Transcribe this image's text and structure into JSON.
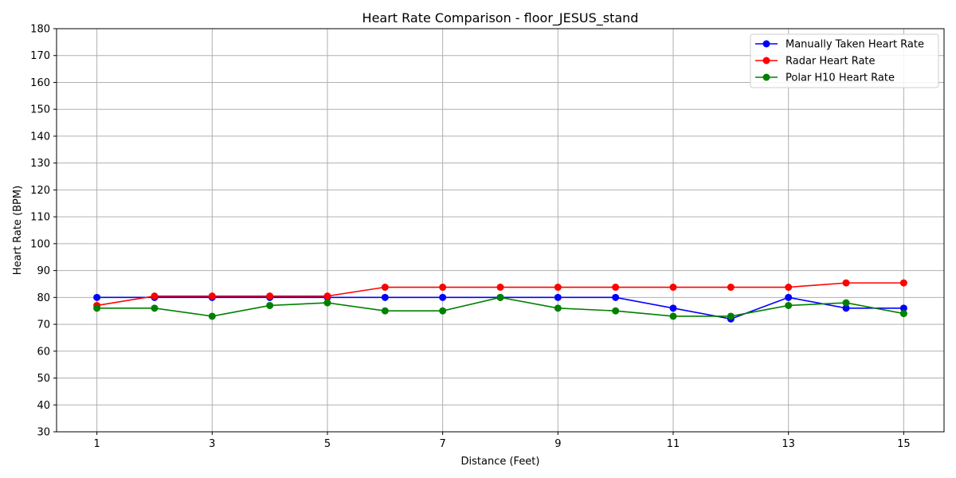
{
  "chart_data": {
    "type": "line",
    "title": "Heart Rate Comparison - floor_JESUS_stand",
    "xlabel": "Distance (Feet)",
    "ylabel": "Heart Rate (BPM)",
    "x": [
      1,
      2,
      3,
      4,
      5,
      6,
      7,
      8,
      9,
      10,
      11,
      12,
      13,
      14,
      15
    ],
    "xlim": [
      0.3,
      15.7
    ],
    "ylim": [
      30,
      180
    ],
    "x_ticks": [
      1,
      3,
      5,
      7,
      9,
      11,
      13,
      15
    ],
    "y_ticks": [
      30,
      40,
      50,
      60,
      70,
      80,
      90,
      100,
      110,
      120,
      130,
      140,
      150,
      160,
      170,
      180
    ],
    "grid": true,
    "legend_position": "top-right",
    "series": [
      {
        "name": "Manually Taken Heart Rate",
        "color": "#0000ff",
        "marker": "circle",
        "values": [
          80,
          80,
          80,
          80,
          80,
          80,
          80,
          80,
          80,
          80,
          76,
          72,
          80,
          76,
          76
        ]
      },
      {
        "name": "Radar Heart Rate",
        "color": "#ff0000",
        "marker": "circle",
        "values": [
          77,
          80.5,
          80.5,
          80.5,
          80.5,
          83.8,
          83.8,
          83.8,
          83.8,
          83.8,
          83.8,
          83.8,
          83.8,
          85.4,
          85.4
        ]
      },
      {
        "name": "Polar H10 Heart Rate",
        "color": "#008000",
        "marker": "circle",
        "values": [
          76,
          76,
          73,
          77,
          78,
          75,
          75,
          80,
          76,
          75,
          73,
          73,
          77,
          78,
          74
        ]
      }
    ]
  }
}
